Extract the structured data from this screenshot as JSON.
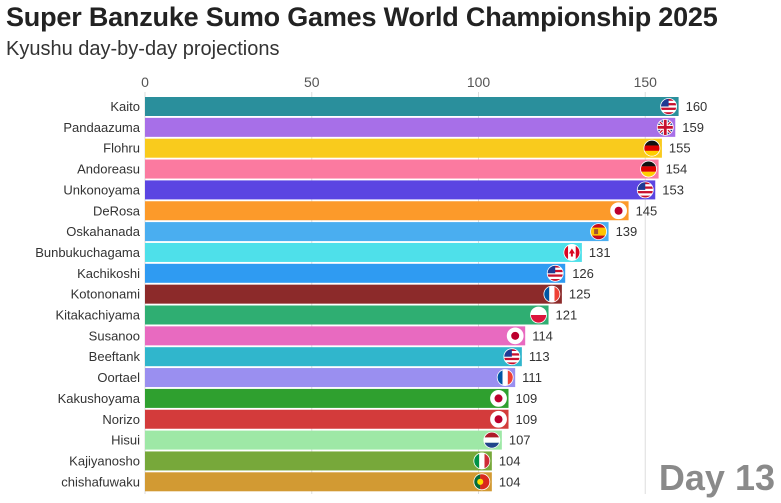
{
  "title": "Super Banzuke Sumo Games World Championship 2025",
  "subtitle": "Kyushu day-by-day projections",
  "day_label": "Day 13",
  "chart_data": {
    "type": "bar",
    "orientation": "horizontal",
    "x_ticks": [
      0,
      50,
      100,
      150
    ],
    "xlim": [
      0,
      160
    ],
    "grid": true,
    "bars": [
      {
        "name": "Kaito",
        "value": 160,
        "color": "#2a8f9c",
        "flag": "usa"
      },
      {
        "name": "Pandaazuma",
        "value": 159,
        "color": "#a76fe8",
        "flag": "uk"
      },
      {
        "name": "Flohru",
        "value": 155,
        "color": "#f9cb1d",
        "flag": "germany"
      },
      {
        "name": "Andoreasu",
        "value": 154,
        "color": "#fb7aa0",
        "flag": "germany"
      },
      {
        "name": "Unkonoyama",
        "value": 153,
        "color": "#5b45e2",
        "flag": "usa"
      },
      {
        "name": "DeRosa",
        "value": 145,
        "color": "#fc9a2a",
        "flag": "japan"
      },
      {
        "name": "Oskahanada",
        "value": 139,
        "color": "#4aaef0",
        "flag": "spain"
      },
      {
        "name": "Bunbukuchagama",
        "value": 131,
        "color": "#4ee0ea",
        "flag": "canada"
      },
      {
        "name": "Kachikoshi",
        "value": 126,
        "color": "#2f9bf2",
        "flag": "usa"
      },
      {
        "name": "Kotononami",
        "value": 125,
        "color": "#8c2a2a",
        "flag": "france"
      },
      {
        "name": "Kitakachiyama",
        "value": 121,
        "color": "#2fae72",
        "flag": "poland"
      },
      {
        "name": "Susanoo",
        "value": 114,
        "color": "#e86ac0",
        "flag": "japan"
      },
      {
        "name": "Beeftank",
        "value": 113,
        "color": "#30b6cc",
        "flag": "usa"
      },
      {
        "name": "Oortael",
        "value": 111,
        "color": "#9a8ff0",
        "flag": "france"
      },
      {
        "name": "Kakushoyama",
        "value": 109,
        "color": "#2fa02f",
        "flag": "japan"
      },
      {
        "name": "Norizo",
        "value": 109,
        "color": "#d33b3b",
        "flag": "japan"
      },
      {
        "name": "Hisui",
        "value": 107,
        "color": "#9ee8a6",
        "flag": "netherlands"
      },
      {
        "name": "Kajiyanosho",
        "value": 104,
        "color": "#77a83a",
        "flag": "italy"
      },
      {
        "name": "chishafuwaku",
        "value": 104,
        "color": "#d29a33",
        "flag": "portugal"
      }
    ]
  }
}
